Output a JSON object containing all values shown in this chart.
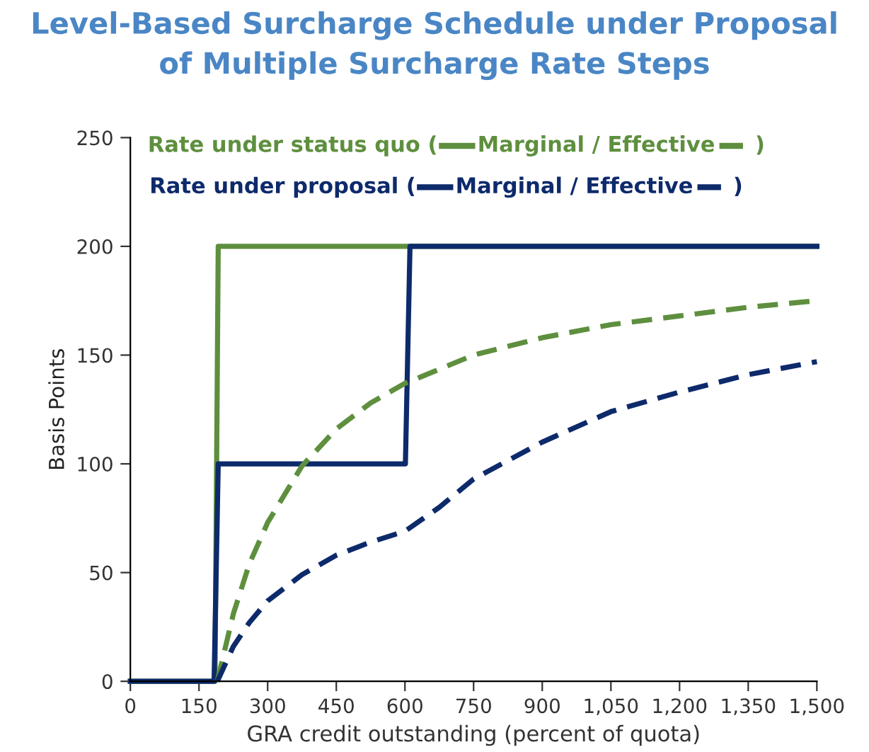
{
  "chart_data": {
    "type": "line",
    "title": "Level-Based Surcharge Schedule under Proposal\nof Multiple Surcharge Rate Steps",
    "xlabel": "GRA credit outstanding (percent of quota)",
    "ylabel": "Basis Points",
    "annotations": [
      "Rate under status quo (",
      "Marginal / Effective",
      ")",
      "Rate under proposal (",
      "Marginal / Effective",
      ")"
    ],
    "series": [
      {
        "color": "#5e8f3e",
        "line_style": "solid",
        "x": [
          0,
          185,
          192,
          1500
        ],
        "values": [
          0,
          0,
          200,
          200
        ]
      },
      {
        "color": "#0d2a6b",
        "line_style": "solid",
        "x": [
          0,
          183,
          192,
          601,
          611,
          1500
        ],
        "values": [
          0,
          0,
          100,
          100,
          200,
          200
        ]
      },
      {
        "color": "#5e8f3e",
        "line_style": "dashed",
        "x": [
          190,
          225,
          260,
          300,
          375,
          450,
          525,
          600,
          750,
          900,
          1050,
          1200,
          1350,
          1500
        ],
        "values": [
          0,
          31,
          54,
          73,
          99,
          116,
          128,
          137,
          150,
          158,
          164,
          168,
          172,
          175
        ]
      },
      {
        "color": "#0d2a6b",
        "line_style": "dashed",
        "x": [
          190,
          225,
          260,
          300,
          375,
          450,
          525,
          600,
          675,
          750,
          900,
          1050,
          1200,
          1350,
          1500
        ],
        "values": [
          0,
          16,
          27,
          37,
          49,
          58,
          64,
          69,
          80,
          93,
          110,
          124,
          133,
          141,
          147
        ]
      }
    ],
    "xlim": [
      0,
      1500
    ],
    "xticks": [
      0,
      150,
      300,
      450,
      600,
      750,
      900,
      {
        "value": 1050,
        "label": "1,050"
      },
      {
        "value": 1200,
        "label": "1,200"
      },
      {
        "value": 1350,
        "label": "1,350"
      },
      {
        "value": 1500,
        "label": "1,500"
      }
    ],
    "ylim": [
      0,
      250
    ],
    "yticks": [
      0,
      50,
      100,
      150,
      200,
      250
    ],
    "grid": false,
    "legend": false,
    "marker": "none"
  }
}
